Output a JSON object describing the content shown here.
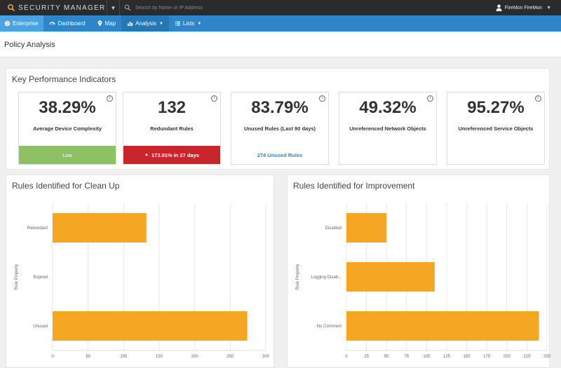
{
  "topbar": {
    "logo_text": "SECURITY MANAGER",
    "search_placeholder": "Search by Name or IP Address",
    "user_name": "FireMon FireMon"
  },
  "nav": {
    "items": [
      {
        "label": "Enterprise",
        "icon": "globe-icon"
      },
      {
        "label": "Dashboard",
        "icon": "gauge-icon"
      },
      {
        "label": "Map",
        "icon": "map-pin-icon"
      },
      {
        "label": "Analysis",
        "icon": "bar-chart-icon",
        "dropdown": true
      },
      {
        "label": "Lists",
        "icon": "list-icon",
        "dropdown": true
      }
    ]
  },
  "page": {
    "title": "Policy Analysis"
  },
  "kpi": {
    "heading": "Key Performance Indicators",
    "cards": [
      {
        "value": "38.29%",
        "label": "Average Device Complexity",
        "footer": "Low"
      },
      {
        "value": "132",
        "label": "Redundant Rules",
        "footer": "173.91% in 27 days"
      },
      {
        "value": "83.79%",
        "label": "Unused Rules (Last 90 days)",
        "footer": "274 Unused Rules"
      },
      {
        "value": "49.32%",
        "label": "Unreferenced Network Objects",
        "footer": ""
      },
      {
        "value": "95.27%",
        "label": "Unreferenced Service Objects",
        "footer": ""
      }
    ],
    "colors": {
      "green": "#8cc063",
      "red": "#c9252c",
      "link": "#2e86c8"
    }
  },
  "chart_data": [
    {
      "type": "bar",
      "orientation": "horizontal",
      "title": "Rules Identified for Clean Up",
      "ylabel": "Rule Property",
      "xlabel": "",
      "categories": [
        "Redundant",
        "Expired",
        "Unused"
      ],
      "values": [
        132,
        0,
        274
      ],
      "xlim": [
        0,
        300
      ],
      "xticks": [
        0,
        50,
        100,
        150,
        200,
        250,
        300
      ],
      "bar_color": "#f5a623",
      "grid": true
    },
    {
      "type": "bar",
      "orientation": "horizontal",
      "title": "Rules Identified for Improvement",
      "ylabel": "Rule Property",
      "xlabel": "",
      "categories": [
        "Disabled",
        "Logging Disab...",
        "No Comment"
      ],
      "values": [
        50,
        110,
        240
      ],
      "xlim": [
        0,
        250
      ],
      "xticks": [
        0,
        25,
        50,
        75,
        100,
        125,
        150,
        175,
        200,
        225,
        250
      ],
      "bar_color": "#f5a623",
      "grid": true
    }
  ]
}
